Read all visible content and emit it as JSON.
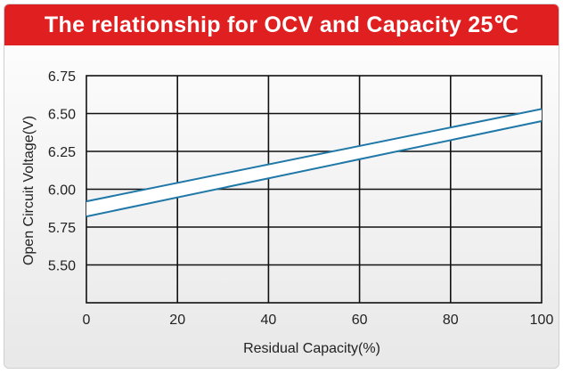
{
  "chart_data": {
    "type": "area",
    "title": "The relationship for OCV and Capacity 25℃",
    "xlabel": "Residual Capacity(%)",
    "ylabel": "Open Circuit Voltage(V)",
    "xlim": [
      0,
      100
    ],
    "ylim": [
      5.25,
      6.75
    ],
    "x_ticks": [
      0,
      20,
      40,
      60,
      80,
      100
    ],
    "y_ticks": [
      5.5,
      5.75,
      6.0,
      6.25,
      6.5,
      6.75
    ],
    "y_tick_labels": [
      "5.50",
      "5.75",
      "6.00",
      "6.25",
      "6.50",
      "6.75"
    ],
    "grid": true,
    "band": {
      "x": [
        0,
        100
      ],
      "upper": [
        5.92,
        6.53
      ],
      "lower": [
        5.82,
        6.45
      ]
    },
    "colors": {
      "band_line": "#1f78a8",
      "band_fill": "#ffffff",
      "grid": "#111111",
      "header_bg": "#e02020"
    }
  }
}
